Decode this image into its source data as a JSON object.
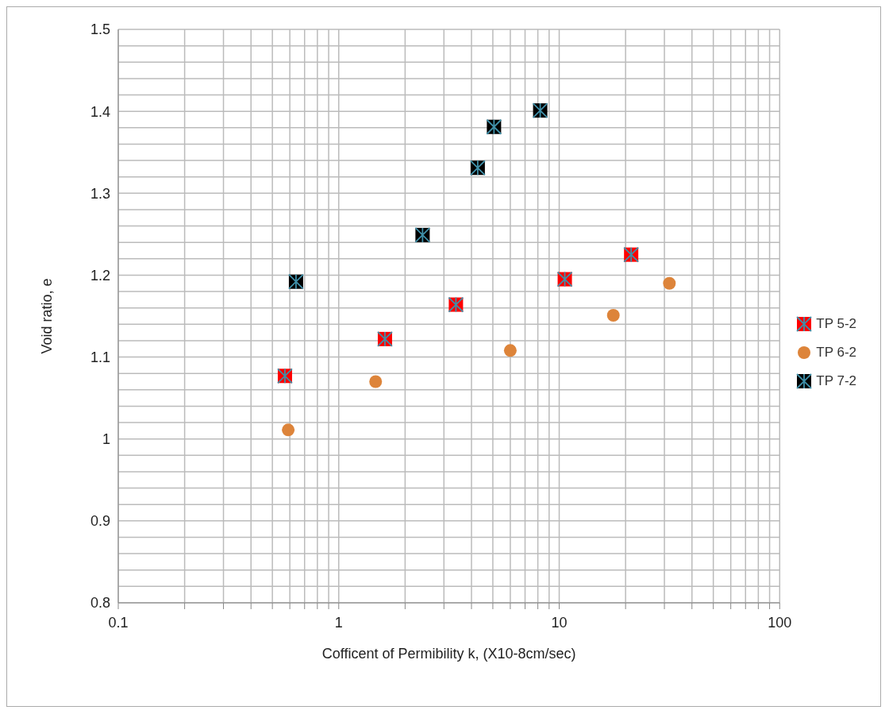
{
  "chart_data": {
    "type": "scatter",
    "xlabel": "Cofficent of Permibility k, (X10-8cm/sec)",
    "ylabel": "Void ratio, e",
    "log": "x",
    "grid": true,
    "legend": "right",
    "xlim": [
      0.1,
      100
    ],
    "xticks": [
      0.1,
      {
        "value": 0.2,
        "label": null
      },
      {
        "value": 0.3,
        "label": null
      },
      {
        "value": 0.4,
        "label": null
      },
      {
        "value": 0.5,
        "label": null
      },
      {
        "value": 0.6,
        "label": null
      },
      {
        "value": 0.7,
        "label": null
      },
      {
        "value": 0.8,
        "label": null
      },
      {
        "value": 0.9,
        "label": null
      },
      1,
      {
        "value": 2,
        "label": null
      },
      {
        "value": 3,
        "label": null
      },
      {
        "value": 4,
        "label": null
      },
      {
        "value": 5,
        "label": null
      },
      {
        "value": 6,
        "label": null
      },
      {
        "value": 7,
        "label": null
      },
      {
        "value": 8,
        "label": null
      },
      {
        "value": 9,
        "label": null
      },
      10,
      {
        "value": 20,
        "label": null
      },
      {
        "value": 30,
        "label": null
      },
      {
        "value": 40,
        "label": null
      },
      {
        "value": 50,
        "label": null
      },
      {
        "value": 60,
        "label": null
      },
      {
        "value": 70,
        "label": null
      },
      {
        "value": 80,
        "label": null
      },
      {
        "value": 90,
        "label": null
      },
      100
    ],
    "ylim": [
      0.8,
      1.5
    ],
    "yticks": [
      0.8,
      {
        "value": 0.82,
        "label": null
      },
      {
        "value": 0.84,
        "label": null
      },
      {
        "value": 0.86,
        "label": null
      },
      {
        "value": 0.88,
        "label": null
      },
      0.9,
      {
        "value": 0.92,
        "label": null
      },
      {
        "value": 0.94,
        "label": null
      },
      {
        "value": 0.96,
        "label": null
      },
      {
        "value": 0.98,
        "label": null
      },
      1,
      {
        "value": 1.02,
        "label": null
      },
      {
        "value": 1.04,
        "label": null
      },
      {
        "value": 1.06,
        "label": null
      },
      {
        "value": 1.08,
        "label": null
      },
      1.1,
      {
        "value": 1.12,
        "label": null
      },
      {
        "value": 1.14,
        "label": null
      },
      {
        "value": 1.16,
        "label": null
      },
      {
        "value": 1.18,
        "label": null
      },
      1.2,
      {
        "value": 1.22,
        "label": null
      },
      {
        "value": 1.24,
        "label": null
      },
      {
        "value": 1.26,
        "label": null
      },
      {
        "value": 1.28,
        "label": null
      },
      1.3,
      {
        "value": 1.32,
        "label": null
      },
      {
        "value": 1.34,
        "label": null
      },
      {
        "value": 1.36,
        "label": null
      },
      {
        "value": 1.38,
        "label": null
      },
      1.4,
      {
        "value": 1.42,
        "label": null
      },
      {
        "value": 1.44,
        "label": null
      },
      {
        "value": 1.46,
        "label": null
      },
      {
        "value": 1.48,
        "label": null
      },
      1.5
    ],
    "series": [
      {
        "name": "TP 5-2",
        "color": "#ff0000",
        "marker": "square",
        "x": [
          0.57,
          1.62,
          3.4,
          10.6,
          21.2
        ],
        "values": [
          1.077,
          1.122,
          1.164,
          1.195,
          1.225
        ]
      },
      {
        "name": "TP 6-2",
        "color": "#dd843a",
        "marker": "circle",
        "x": [
          0.59,
          1.47,
          6.0,
          17.6,
          31.6
        ],
        "values": [
          1.011,
          1.07,
          1.108,
          1.151,
          1.19
        ]
      },
      {
        "name": "TP 7-2",
        "color": "#000000",
        "marker": "square",
        "x": [
          0.64,
          2.4,
          4.27,
          5.06,
          8.2
        ],
        "values": [
          1.192,
          1.249,
          1.331,
          1.381,
          1.401
        ]
      }
    ]
  }
}
